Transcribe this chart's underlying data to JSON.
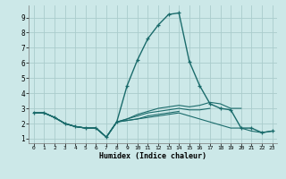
{
  "title": "",
  "xlabel": "Humidex (Indice chaleur)",
  "bg_color": "#cce8e8",
  "grid_color": "#aacccc",
  "line_color": "#1a6b6b",
  "xlim": [
    -0.5,
    23.5
  ],
  "ylim": [
    0.7,
    9.8
  ],
  "xticks": [
    0,
    1,
    2,
    3,
    4,
    5,
    6,
    7,
    8,
    9,
    10,
    11,
    12,
    13,
    14,
    15,
    16,
    17,
    18,
    19,
    20,
    21,
    22,
    23
  ],
  "yticks": [
    1,
    2,
    3,
    4,
    5,
    6,
    7,
    8,
    9
  ],
  "series": [
    {
      "x": [
        0,
        1,
        2,
        3,
        4,
        5,
        6,
        7,
        8,
        9,
        10,
        11,
        12,
        13,
        14,
        15,
        16,
        17,
        18,
        19,
        20,
        21,
        22,
        23
      ],
      "y": [
        2.7,
        2.7,
        2.4,
        2.0,
        1.8,
        1.7,
        1.7,
        1.1,
        2.1,
        4.5,
        6.2,
        7.6,
        8.5,
        9.2,
        9.3,
        6.1,
        4.5,
        3.3,
        3.0,
        2.9,
        1.7,
        1.7,
        1.4,
        1.5
      ],
      "marker": true,
      "lw": 1.0
    },
    {
      "x": [
        0,
        1,
        2,
        3,
        4,
        5,
        6,
        7,
        8,
        9,
        10,
        11,
        12,
        13,
        14,
        15,
        16,
        17,
        18,
        19,
        20
      ],
      "y": [
        2.7,
        2.7,
        2.4,
        2.0,
        1.8,
        1.7,
        1.7,
        1.1,
        2.1,
        2.3,
        2.6,
        2.8,
        3.0,
        3.1,
        3.2,
        3.1,
        3.2,
        3.4,
        3.3,
        3.0,
        3.0
      ],
      "marker": false,
      "lw": 0.8
    },
    {
      "x": [
        0,
        1,
        2,
        3,
        4,
        5,
        6,
        7,
        8,
        9,
        10,
        11,
        12,
        13,
        14,
        15,
        16,
        17
      ],
      "y": [
        2.7,
        2.7,
        2.4,
        2.0,
        1.8,
        1.7,
        1.7,
        1.1,
        2.1,
        2.3,
        2.5,
        2.7,
        2.8,
        2.9,
        3.0,
        2.9,
        2.9,
        3.0
      ],
      "marker": false,
      "lw": 0.8
    },
    {
      "x": [
        0,
        1,
        2,
        3,
        4,
        5,
        6,
        7,
        8,
        9,
        10,
        11,
        12,
        13,
        14
      ],
      "y": [
        2.7,
        2.7,
        2.4,
        2.0,
        1.8,
        1.7,
        1.7,
        1.1,
        2.1,
        2.2,
        2.3,
        2.5,
        2.6,
        2.7,
        2.8
      ],
      "marker": false,
      "lw": 0.8
    },
    {
      "x": [
        0,
        1,
        2,
        3,
        4,
        5,
        6,
        7,
        8,
        9,
        10,
        11,
        12,
        13,
        14,
        19,
        20,
        21,
        22,
        23
      ],
      "y": [
        2.7,
        2.7,
        2.4,
        2.0,
        1.8,
        1.7,
        1.7,
        1.1,
        2.1,
        2.2,
        2.3,
        2.4,
        2.5,
        2.6,
        2.7,
        1.7,
        1.7,
        1.5,
        1.4,
        1.5
      ],
      "marker": false,
      "lw": 0.8
    }
  ]
}
